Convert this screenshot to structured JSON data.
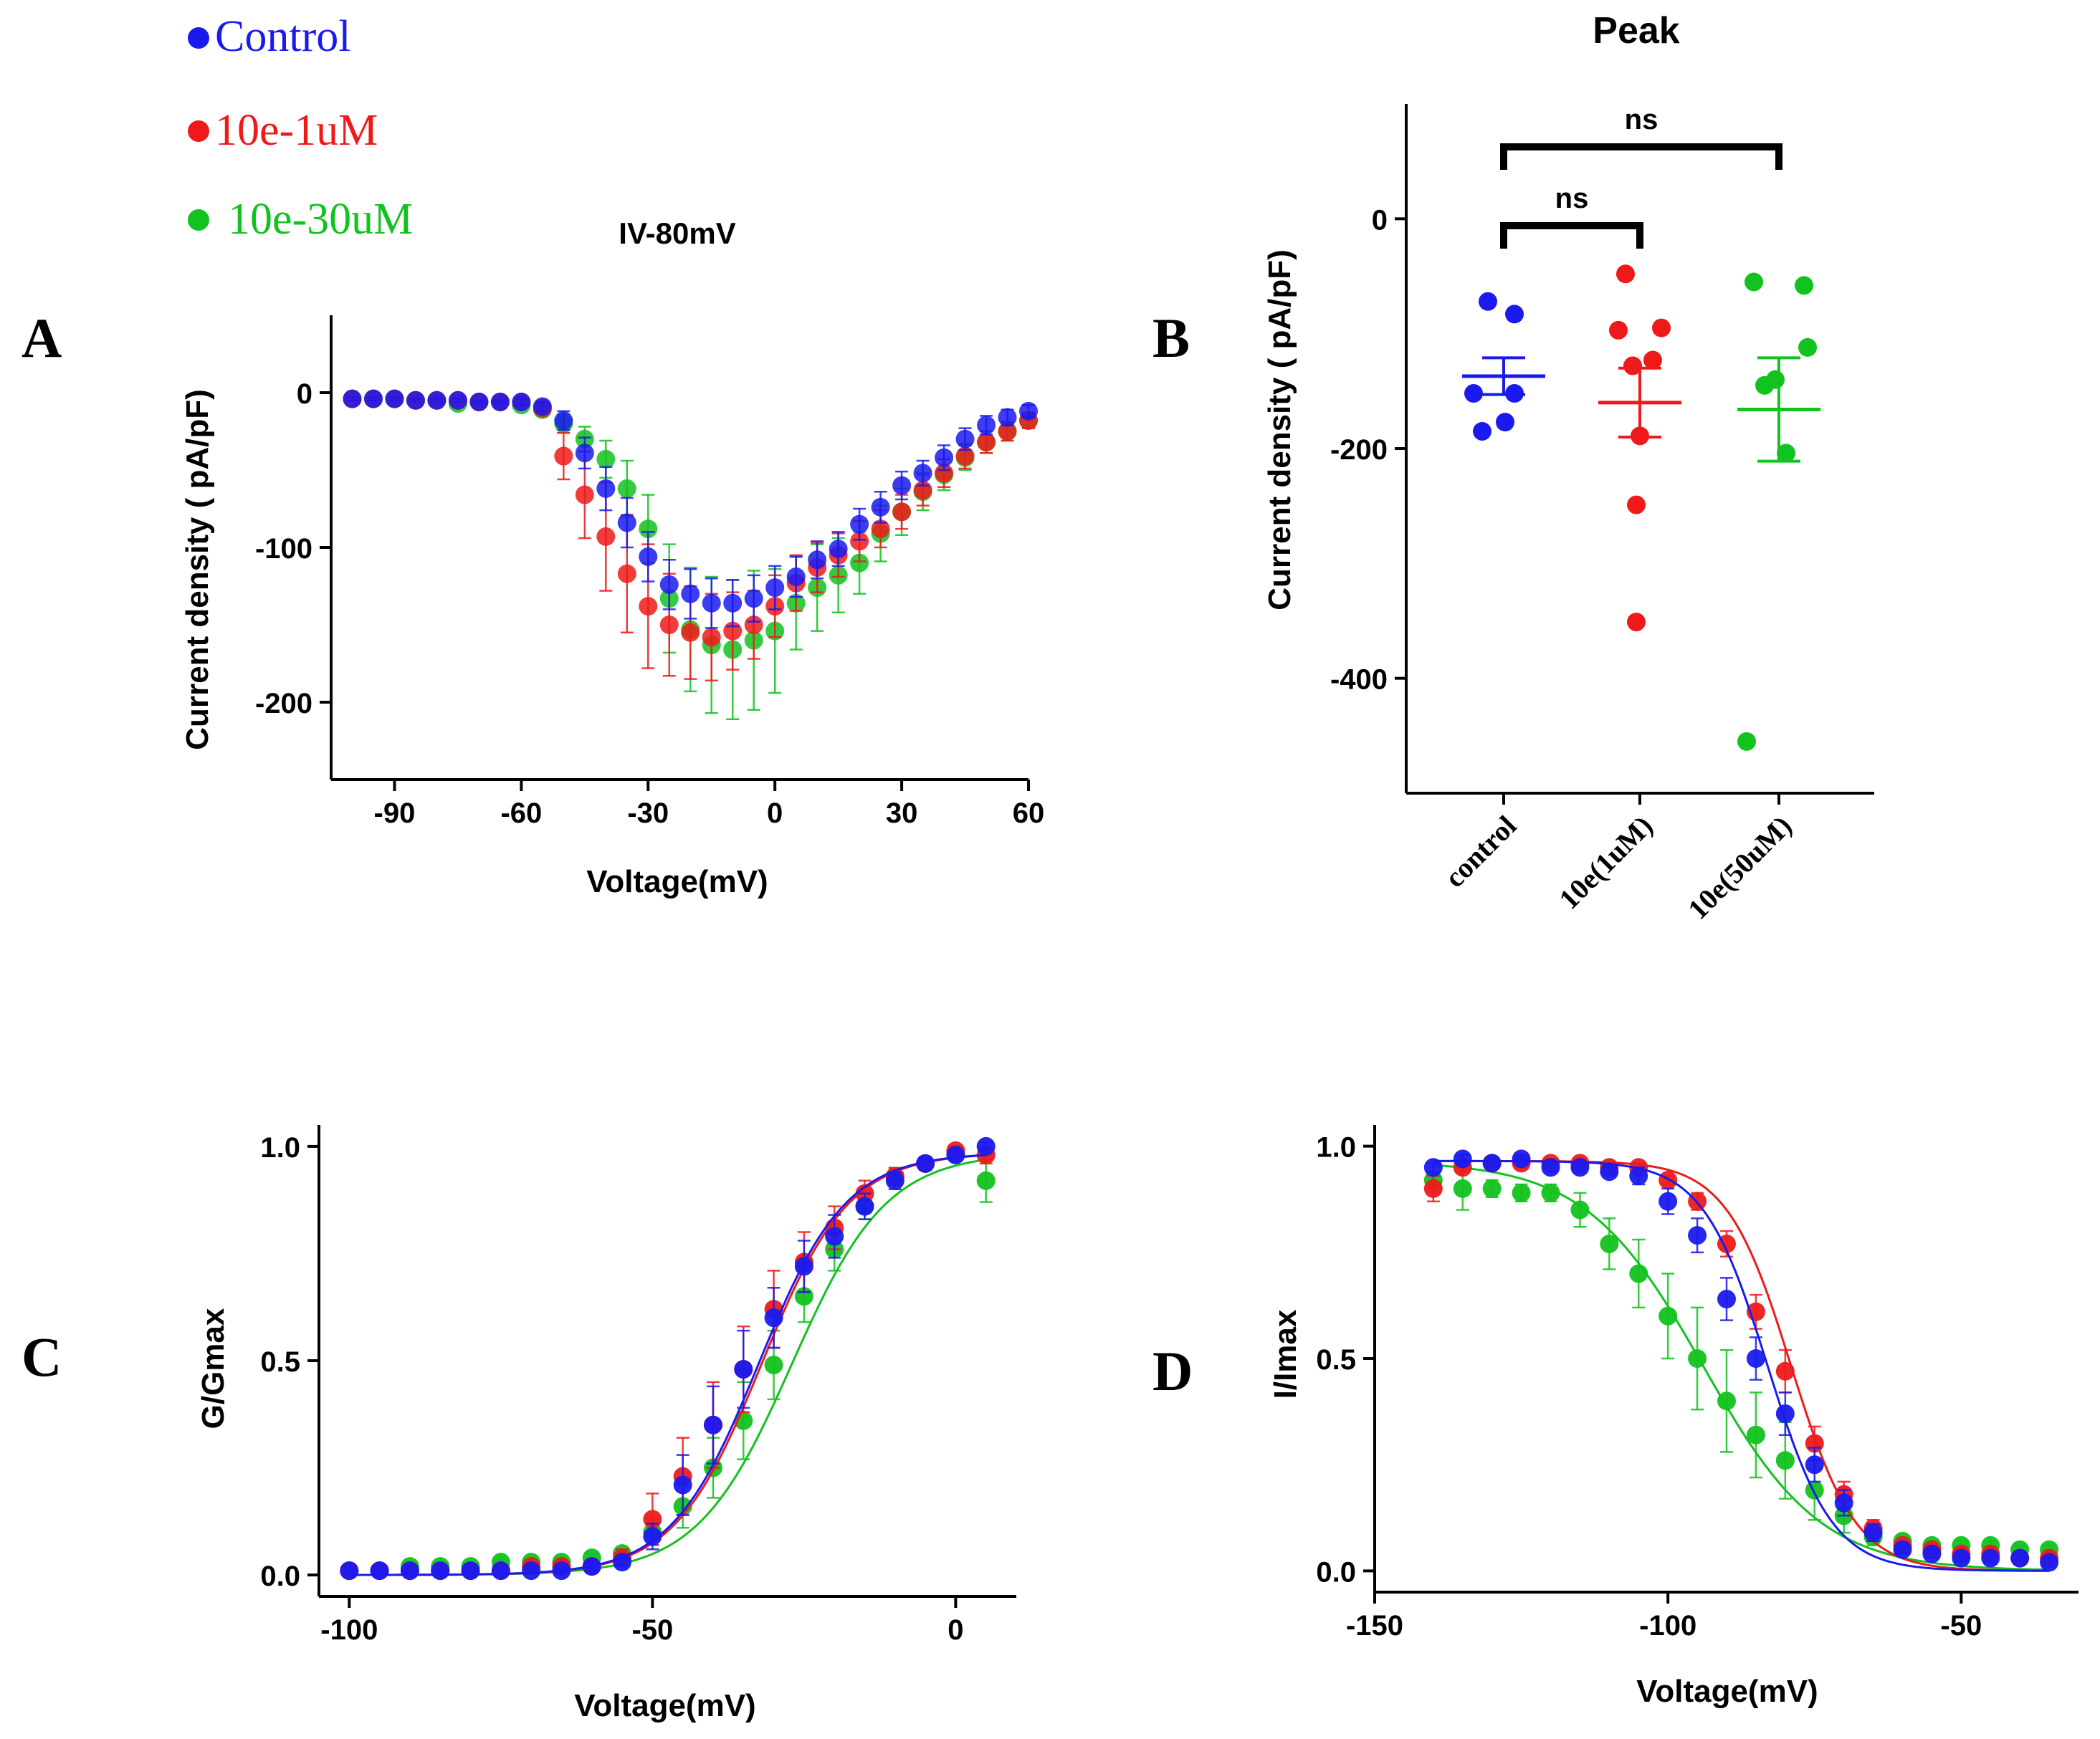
{
  "colors": {
    "control": "#1a1aee",
    "uM1": "#ee1a1a",
    "uM30": "#12c21e",
    "axis": "#000000"
  },
  "legend": [
    {
      "label": "Control",
      "color": "#1a1aee"
    },
    {
      "label": "10e-1uM",
      "color": "#ee1a1a"
    },
    {
      "label": "10e-30uM",
      "color": "#12c21e"
    }
  ],
  "chart_data": [
    {
      "panel": "A",
      "type": "scatter",
      "title": "IV-80mV",
      "xlabel": "Voltage(mV)",
      "ylabel": "Current density ( pA/pF)",
      "xlim": [
        -105,
        60
      ],
      "ylim": [
        -250,
        50
      ],
      "xticks": [
        -90,
        -60,
        -30,
        0,
        30,
        60
      ],
      "yticks": [
        0,
        -100,
        -200
      ],
      "x": [
        -100,
        -95,
        -90,
        -85,
        -80,
        -75,
        -70,
        -65,
        -60,
        -55,
        -50,
        -45,
        -40,
        -35,
        -30,
        -25,
        -20,
        -15,
        -10,
        -5,
        0,
        5,
        10,
        15,
        20,
        25,
        30,
        35,
        40,
        45,
        50,
        55,
        60
      ],
      "series": [
        {
          "name": "10e-30uM",
          "color": "#12c21e",
          "values": [
            -4,
            -4,
            -4,
            -5,
            -5,
            -7,
            -6,
            -6,
            -8,
            -11,
            -20,
            -30,
            -43,
            -62,
            -88,
            -133,
            -153,
            -163,
            -166,
            -160,
            -154,
            -136,
            -126,
            -118,
            -110,
            -91,
            -77,
            -64,
            -53,
            -42,
            -32,
            -25,
            -18
          ],
          "errors": [
            1,
            1,
            1,
            1,
            1,
            1,
            1,
            1,
            2,
            3,
            6,
            8,
            12,
            18,
            22,
            35,
            40,
            44,
            45,
            45,
            40,
            30,
            28,
            24,
            20,
            18,
            15,
            12,
            10,
            8,
            7,
            6,
            5
          ]
        },
        {
          "name": "10e-1uM",
          "color": "#ee1a1a",
          "values": [
            -4,
            -4,
            -4,
            -5,
            -5,
            -5,
            -6,
            -6,
            -6,
            -10,
            -41,
            -66,
            -93,
            -117,
            -138,
            -150,
            -155,
            -158,
            -154,
            -150,
            -138,
            -123,
            -113,
            -105,
            -96,
            -88,
            -77,
            -63,
            -52,
            -41,
            -32,
            -25,
            -18
          ],
          "errors": [
            1,
            1,
            1,
            1,
            1,
            1,
            1,
            1,
            2,
            4,
            15,
            28,
            35,
            38,
            40,
            33,
            30,
            28,
            25,
            22,
            20,
            18,
            16,
            14,
            13,
            12,
            11,
            10,
            9,
            8,
            7,
            6,
            5
          ]
        },
        {
          "name": "Control",
          "color": "#1a1aee",
          "values": [
            -4,
            -4,
            -4,
            -5,
            -5,
            -5,
            -6,
            -6,
            -6,
            -9,
            -18,
            -39,
            -62,
            -84,
            -106,
            -124,
            -130,
            -136,
            -136,
            -133,
            -126,
            -119,
            -108,
            -101,
            -85,
            -74,
            -60,
            -52,
            -42,
            -30,
            -21,
            -16,
            -12
          ],
          "errors": [
            1,
            1,
            1,
            1,
            1,
            1,
            1,
            1,
            2,
            3,
            6,
            10,
            14,
            16,
            16,
            16,
            16,
            16,
            15,
            15,
            14,
            13,
            12,
            11,
            10,
            10,
            9,
            8,
            8,
            7,
            6,
            5,
            4
          ]
        }
      ]
    },
    {
      "panel": "B",
      "type": "scatter",
      "title": "Peak",
      "ylabel": "Current density ( pA/pF)",
      "ylim": [
        -500,
        100
      ],
      "yticks": [
        0,
        -200,
        -400
      ],
      "categories": [
        "control",
        "10e(1uM)",
        "10e(50uM)"
      ],
      "groups": [
        {
          "name": "control",
          "color": "#1a1aee",
          "points": [
            -72,
            -83,
            -152,
            -152,
            -177,
            -185
          ],
          "mean": -137,
          "sem": 16
        },
        {
          "name": "10e(1uM)",
          "color": "#ee1a1a",
          "points": [
            -48,
            -95,
            -97,
            -128,
            -123,
            -189,
            -249,
            -351
          ],
          "mean": -160,
          "sem": 30
        },
        {
          "name": "10e(50uM)",
          "color": "#12c21e",
          "points": [
            -55,
            -58,
            -112,
            -140,
            -145,
            -204,
            -455
          ],
          "mean": -166,
          "sem": 45
        }
      ],
      "annotations": [
        {
          "text": "ns",
          "from": "control",
          "to": "10e(50uM)"
        },
        {
          "text": "ns",
          "from": "control",
          "to": "10e(1uM)"
        }
      ]
    },
    {
      "panel": "C",
      "type": "line",
      "xlabel": "Voltage(mV)",
      "ylabel": "G/Gmax",
      "xlim": [
        -105,
        10
      ],
      "ylim": [
        -0.05,
        1.05
      ],
      "xticks": [
        -100,
        -50,
        0
      ],
      "yticks": [
        0.0,
        0.5,
        1.0
      ],
      "x": [
        -100,
        -95,
        -90,
        -85,
        -80,
        -75,
        -70,
        -65,
        -60,
        -55,
        -50,
        -45,
        -40,
        -35,
        -30,
        -25,
        -20,
        -15,
        -10,
        -5,
        0,
        5
      ],
      "series": [
        {
          "name": "10e-30uM",
          "color": "#12c21e",
          "fit_v50": -27,
          "fit_k": 7.8,
          "values": [
            0.01,
            0.01,
            0.02,
            0.02,
            0.02,
            0.03,
            0.03,
            0.03,
            0.04,
            0.05,
            0.1,
            0.16,
            0.25,
            0.36,
            0.49,
            0.65,
            0.76,
            0.86,
            0.93,
            0.96,
            0.98,
            0.92
          ],
          "errors": [
            0.005,
            0.005,
            0.005,
            0.005,
            0.005,
            0.005,
            0.005,
            0.005,
            0.01,
            0.01,
            0.03,
            0.05,
            0.07,
            0.09,
            0.08,
            0.06,
            0.05,
            0.03,
            0.02,
            0.015,
            0.01,
            0.05
          ]
        },
        {
          "name": "10e-1uM",
          "color": "#ee1a1a",
          "fit_v50": -32,
          "fit_k": 7.2,
          "values": [
            0.01,
            0.01,
            0.01,
            0.01,
            0.01,
            0.01,
            0.02,
            0.02,
            0.02,
            0.04,
            0.13,
            0.23,
            0.35,
            0.48,
            0.62,
            0.73,
            0.81,
            0.89,
            0.93,
            0.96,
            0.99,
            0.98
          ],
          "errors": [
            0.005,
            0.005,
            0.005,
            0.005,
            0.005,
            0.005,
            0.005,
            0.005,
            0.01,
            0.02,
            0.06,
            0.09,
            0.1,
            0.1,
            0.09,
            0.07,
            0.05,
            0.03,
            0.02,
            0.015,
            0.01,
            0.02
          ]
        },
        {
          "name": "Control",
          "color": "#1a1aee",
          "fit_v50": -32.5,
          "fit_k": 7.2,
          "values": [
            0.01,
            0.01,
            0.01,
            0.01,
            0.01,
            0.01,
            0.01,
            0.01,
            0.02,
            0.03,
            0.09,
            0.21,
            0.35,
            0.48,
            0.6,
            0.72,
            0.79,
            0.86,
            0.92,
            0.96,
            0.98,
            1.0
          ],
          "errors": [
            0.005,
            0.005,
            0.005,
            0.005,
            0.005,
            0.005,
            0.005,
            0.005,
            0.01,
            0.01,
            0.03,
            0.07,
            0.09,
            0.09,
            0.07,
            0.06,
            0.05,
            0.03,
            0.02,
            0.015,
            0.01,
            0.01
          ]
        }
      ]
    },
    {
      "panel": "D",
      "type": "line",
      "xlabel": "Voltage(mV)",
      "ylabel": "I/Imax",
      "xlim": [
        -150,
        -30
      ],
      "ylim": [
        -0.05,
        1.05
      ],
      "xticks": [
        -150,
        -100,
        -50
      ],
      "yticks": [
        0.0,
        0.5,
        1.0
      ],
      "x": [
        -140,
        -135,
        -130,
        -125,
        -120,
        -115,
        -110,
        -105,
        -100,
        -95,
        -90,
        -85,
        -80,
        -75,
        -70,
        -65,
        -60,
        -55,
        -50,
        -45,
        -40,
        -35
      ],
      "series": [
        {
          "name": "10e-30uM",
          "color": "#12c21e",
          "fit_v50": -94,
          "fit_k": 10,
          "values": [
            0.92,
            0.9,
            0.9,
            0.89,
            0.89,
            0.85,
            0.77,
            0.7,
            0.6,
            0.5,
            0.4,
            0.32,
            0.26,
            0.19,
            0.13,
            0.08,
            0.07,
            0.06,
            0.06,
            0.06,
            0.05,
            0.05
          ],
          "errors": [
            0.02,
            0.05,
            0.02,
            0.02,
            0.02,
            0.04,
            0.06,
            0.08,
            0.1,
            0.12,
            0.12,
            0.1,
            0.09,
            0.07,
            0.04,
            0.02,
            0.01,
            0.01,
            0.01,
            0.01,
            0.01,
            0.01
          ]
        },
        {
          "name": "10e-1uM",
          "color": "#ee1a1a",
          "fit_v50": -79,
          "fit_k": 5.5,
          "values": [
            0.9,
            0.95,
            0.96,
            0.96,
            0.96,
            0.96,
            0.95,
            0.95,
            0.92,
            0.87,
            0.77,
            0.61,
            0.47,
            0.3,
            0.18,
            0.1,
            0.06,
            0.05,
            0.04,
            0.04,
            0.03,
            0.03
          ],
          "errors": [
            0.03,
            0.01,
            0.01,
            0.01,
            0.01,
            0.01,
            0.01,
            0.01,
            0.01,
            0.02,
            0.03,
            0.04,
            0.05,
            0.04,
            0.03,
            0.02,
            0.01,
            0.01,
            0.01,
            0.01,
            0.01,
            0.01
          ]
        },
        {
          "name": "Control",
          "color": "#1a1aee",
          "fit_v50": -83,
          "fit_k": 5.5,
          "values": [
            0.95,
            0.97,
            0.96,
            0.97,
            0.95,
            0.95,
            0.94,
            0.93,
            0.87,
            0.79,
            0.64,
            0.5,
            0.37,
            0.25,
            0.16,
            0.09,
            0.05,
            0.04,
            0.03,
            0.03,
            0.03,
            0.02
          ],
          "errors": [
            0.01,
            0.01,
            0.01,
            0.01,
            0.01,
            0.01,
            0.01,
            0.02,
            0.03,
            0.04,
            0.05,
            0.05,
            0.05,
            0.04,
            0.03,
            0.02,
            0.01,
            0.01,
            0.01,
            0.01,
            0.01,
            0.01
          ]
        }
      ]
    }
  ],
  "panel_letters": [
    "A",
    "B",
    "C",
    "D"
  ]
}
